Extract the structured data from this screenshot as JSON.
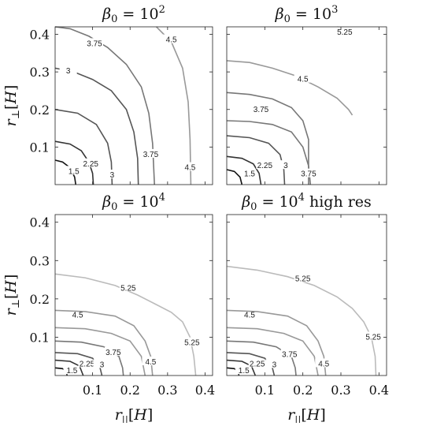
{
  "figure": {
    "xlabel": "r||[H]",
    "ylabel": "r⊥[H]"
  },
  "chart_data": [
    {
      "type": "contour",
      "title": "β0 = 10^2",
      "xlim": [
        0,
        0.42
      ],
      "ylim": [
        0,
        0.42
      ],
      "xticks": [],
      "yticks": [
        "0.1",
        "0.2",
        "0.3",
        "0.4"
      ],
      "xlabel": "",
      "ylabel": "r⊥[H]",
      "levels": [
        {
          "level": "1.5",
          "color": "#111111",
          "points": [
            [
              0.0,
              0.065
            ],
            [
              0.02,
              0.06
            ],
            [
              0.04,
              0.045
            ],
            [
              0.052,
              0.02
            ],
            [
              0.055,
              0.0
            ]
          ],
          "label_at": [
            0.05,
            0.035
          ]
        },
        {
          "level": "2.25",
          "color": "#333333",
          "points": [
            [
              0.0,
              0.115
            ],
            [
              0.04,
              0.108
            ],
            [
              0.07,
              0.09
            ],
            [
              0.09,
              0.06
            ],
            [
              0.1,
              0.03
            ],
            [
              0.102,
              0.0
            ]
          ],
          "label_at": [
            0.095,
            0.055
          ]
        },
        {
          "level": "3",
          "color": "#555555",
          "points": [
            [
              0.0,
              0.2
            ],
            [
              0.06,
              0.19
            ],
            [
              0.11,
              0.16
            ],
            [
              0.14,
              0.11
            ],
            [
              0.15,
              0.06
            ],
            [
              0.152,
              0.0
            ]
          ],
          "label_at": [
            0.152,
            0.025
          ]
        },
        {
          "level": "3",
          "color": "#555555",
          "points": [
            [
              0.0,
              0.31
            ],
            [
              0.05,
              0.3
            ],
            [
              0.1,
              0.28
            ],
            [
              0.15,
              0.25
            ],
            [
              0.19,
              0.2
            ],
            [
              0.21,
              0.14
            ],
            [
              0.22,
              0.07
            ],
            [
              0.222,
              0.0
            ]
          ],
          "label_at": [
            0.035,
            0.302
          ]
        },
        {
          "level": "3.75",
          "color": "#777777",
          "points": [
            [
              0.0,
              0.42
            ],
            [
              0.04,
              0.415
            ],
            [
              0.09,
              0.395
            ],
            [
              0.14,
              0.365
            ],
            [
              0.19,
              0.32
            ],
            [
              0.23,
              0.26
            ],
            [
              0.25,
              0.19
            ],
            [
              0.26,
              0.11
            ],
            [
              0.265,
              0.0
            ]
          ],
          "label_at": [
            0.105,
            0.375
          ]
        },
        {
          "level": "4.5",
          "color": "#999999",
          "points": [
            [
              0.27,
              0.42
            ],
            [
              0.31,
              0.38
            ],
            [
              0.34,
              0.31
            ],
            [
              0.355,
              0.22
            ],
            [
              0.36,
              0.12
            ],
            [
              0.362,
              0.0
            ]
          ],
          "label_at": [
            0.31,
            0.385
          ]
        }
      ],
      "labels_extra": [
        {
          "text": "3.75",
          "at": [
            0.255,
            0.08
          ]
        },
        {
          "text": "4.5",
          "at": [
            0.36,
            0.045
          ]
        }
      ]
    },
    {
      "type": "contour",
      "title": "β0 = 10^3",
      "xlim": [
        0,
        0.42
      ],
      "ylim": [
        0,
        0.42
      ],
      "xticks": [],
      "yticks": [],
      "xlabel": "",
      "ylabel": "",
      "levels": [
        {
          "level": "1.5",
          "color": "#111111",
          "points": [
            [
              0.0,
              0.04
            ],
            [
              0.02,
              0.035
            ],
            [
              0.035,
              0.02
            ],
            [
              0.04,
              0.0
            ]
          ],
          "label_at": [
            0.06,
            0.028
          ]
        },
        {
          "level": "2.25",
          "color": "#333333",
          "points": [
            [
              0.0,
              0.075
            ],
            [
              0.04,
              0.07
            ],
            [
              0.07,
              0.055
            ],
            [
              0.085,
              0.03
            ],
            [
              0.09,
              0.0
            ]
          ],
          "label_at": [
            0.1,
            0.05
          ]
        },
        {
          "level": "3",
          "color": "#555555",
          "points": [
            [
              0.0,
              0.13
            ],
            [
              0.06,
              0.125
            ],
            [
              0.11,
              0.11
            ],
            [
              0.14,
              0.08
            ],
            [
              0.15,
              0.04
            ],
            [
              0.152,
              0.0
            ]
          ],
          "label_at": [
            0.155,
            0.05
          ]
        },
        {
          "level": "3.75",
          "color": "#777777",
          "points": [
            [
              0.0,
              0.17
            ],
            [
              0.06,
              0.168
            ],
            [
              0.12,
              0.16
            ],
            [
              0.17,
              0.14
            ],
            [
              0.2,
              0.1
            ],
            [
              0.215,
              0.05
            ],
            [
              0.22,
              0.0
            ]
          ],
          "label_at": [
            0.09,
            0.2
          ]
        },
        {
          "level": "3.75",
          "color": "#777777",
          "points": [
            [
              0.0,
              0.245
            ],
            [
              0.06,
              0.24
            ],
            [
              0.12,
              0.228
            ],
            [
              0.17,
              0.205
            ],
            [
              0.2,
              0.17
            ],
            [
              0.215,
              0.12
            ],
            [
              0.215,
              0.0
            ]
          ],
          "label_at": [
            0.215,
            0.028
          ]
        },
        {
          "level": "4.5",
          "color": "#999999",
          "points": [
            [
              0.0,
              0.33
            ],
            [
              0.06,
              0.325
            ],
            [
              0.12,
              0.31
            ],
            [
              0.18,
              0.29
            ],
            [
              0.24,
              0.26
            ],
            [
              0.29,
              0.23
            ],
            [
              0.32,
              0.2
            ],
            [
              0.33,
              0.185
            ]
          ],
          "label_at": [
            0.2,
            0.28
          ]
        },
        {
          "level": "5.25",
          "color": "#bbbbbb",
          "points": [
            [
              0.29,
              0.42
            ],
            [
              0.33,
              0.41
            ]
          ],
          "label_at": [
            0.31,
            0.405
          ]
        }
      ],
      "labels_extra": []
    },
    {
      "type": "contour",
      "title": "β0 = 10^4",
      "xlim": [
        0,
        0.42
      ],
      "ylim": [
        0,
        0.42
      ],
      "xticks": [
        "0.1",
        "0.2",
        "0.3",
        "0.4"
      ],
      "yticks": [
        "0.1",
        "0.2",
        "0.3",
        "0.4"
      ],
      "xlabel": "r||[H]",
      "ylabel": "r⊥[H]",
      "levels": [
        {
          "level": "1.5",
          "color": "#111111",
          "points": [
            [
              0.0,
              0.02
            ],
            [
              0.02,
              0.018
            ],
            [
              0.03,
              0.01
            ],
            [
              0.032,
              0.0
            ]
          ],
          "label_at": [
            0.045,
            0.012
          ]
        },
        {
          "level": "2.25",
          "color": "#333333",
          "points": [
            [
              0.0,
              0.04
            ],
            [
              0.04,
              0.037
            ],
            [
              0.065,
              0.025
            ],
            [
              0.075,
              0.0
            ]
          ],
          "label_at": [
            0.085,
            0.03
          ]
        },
        {
          "level": "3",
          "color": "#555555",
          "points": [
            [
              0.0,
              0.06
            ],
            [
              0.06,
              0.057
            ],
            [
              0.1,
              0.045
            ],
            [
              0.12,
              0.02
            ],
            [
              0.125,
              0.0
            ]
          ],
          "label_at": [
            0.125,
            0.028
          ]
        },
        {
          "level": "3.75",
          "color": "#777777",
          "points": [
            [
              0.0,
              0.09
            ],
            [
              0.07,
              0.087
            ],
            [
              0.13,
              0.075
            ],
            [
              0.17,
              0.05
            ],
            [
              0.18,
              0.02
            ],
            [
              0.182,
              0.0
            ]
          ],
          "label_at": [
            0.155,
            0.06
          ]
        },
        {
          "level": "4.5",
          "color": "#999999",
          "points": [
            [
              0.0,
              0.125
            ],
            [
              0.08,
              0.122
            ],
            [
              0.15,
              0.11
            ],
            [
              0.2,
              0.09
            ],
            [
              0.23,
              0.05
            ],
            [
              0.24,
              0.0
            ]
          ],
          "label_at": [
            0.06,
            0.158
          ]
        },
        {
          "level": "4.5",
          "color": "#999999",
          "points": [
            [
              0.0,
              0.17
            ],
            [
              0.08,
              0.167
            ],
            [
              0.16,
              0.155
            ],
            [
              0.21,
              0.13
            ],
            [
              0.24,
              0.09
            ],
            [
              0.255,
              0.05
            ],
            [
              0.26,
              0.0
            ]
          ],
          "label_at": [
            0.255,
            0.035
          ]
        },
        {
          "level": "5.25",
          "color": "#bbbbbb",
          "points": [
            [
              0.0,
              0.265
            ],
            [
              0.08,
              0.255
            ],
            [
              0.16,
              0.235
            ],
            [
              0.22,
              0.21
            ],
            [
              0.27,
              0.185
            ],
            [
              0.31,
              0.165
            ],
            [
              0.34,
              0.14
            ],
            [
              0.36,
              0.1
            ],
            [
              0.37,
              0.05
            ],
            [
              0.375,
              0.0
            ]
          ],
          "label_at": [
            0.195,
            0.228
          ]
        }
      ],
      "labels_extra": [
        {
          "text": "5.25",
          "at": [
            0.365,
            0.085
          ]
        }
      ]
    },
    {
      "type": "contour",
      "title": "β0 = 10^4 high res",
      "xlim": [
        0,
        0.42
      ],
      "ylim": [
        0,
        0.42
      ],
      "xticks": [
        "0.1",
        "0.2",
        "0.3",
        "0.4"
      ],
      "yticks": [],
      "xlabel": "r||[H]",
      "ylabel": "",
      "levels": [
        {
          "level": "1.5",
          "color": "#111111",
          "points": [
            [
              0.0,
              0.02
            ],
            [
              0.02,
              0.018
            ],
            [
              0.03,
              0.01
            ],
            [
              0.032,
              0.0
            ]
          ],
          "label_at": [
            0.045,
            0.012
          ]
        },
        {
          "level": "2.25",
          "color": "#333333",
          "points": [
            [
              0.0,
              0.04
            ],
            [
              0.04,
              0.037
            ],
            [
              0.065,
              0.025
            ],
            [
              0.075,
              0.0
            ]
          ],
          "label_at": [
            0.08,
            0.03
          ]
        },
        {
          "level": "3",
          "color": "#555555",
          "points": [
            [
              0.0,
              0.06
            ],
            [
              0.06,
              0.057
            ],
            [
              0.1,
              0.045
            ],
            [
              0.12,
              0.02
            ],
            [
              0.125,
              0.0
            ]
          ],
          "label_at": [
            0.125,
            0.028
          ]
        },
        {
          "level": "3.75",
          "color": "#777777",
          "points": [
            [
              0.0,
              0.09
            ],
            [
              0.07,
              0.087
            ],
            [
              0.13,
              0.075
            ],
            [
              0.17,
              0.05
            ],
            [
              0.18,
              0.02
            ],
            [
              0.182,
              0.0
            ]
          ],
          "label_at": [
            0.165,
            0.055
          ]
        },
        {
          "level": "4.5",
          "color": "#999999",
          "points": [
            [
              0.0,
              0.125
            ],
            [
              0.08,
              0.122
            ],
            [
              0.15,
              0.11
            ],
            [
              0.2,
              0.09
            ],
            [
              0.23,
              0.05
            ],
            [
              0.24,
              0.0
            ]
          ],
          "label_at": [
            0.06,
            0.158
          ]
        },
        {
          "level": "4.5",
          "color": "#999999",
          "points": [
            [
              0.0,
              0.17
            ],
            [
              0.08,
              0.167
            ],
            [
              0.16,
              0.155
            ],
            [
              0.21,
              0.13
            ],
            [
              0.24,
              0.09
            ],
            [
              0.255,
              0.05
            ],
            [
              0.26,
              0.0
            ]
          ],
          "label_at": [
            0.255,
            0.03
          ]
        },
        {
          "level": "5.25",
          "color": "#bbbbbb",
          "points": [
            [
              0.0,
              0.285
            ],
            [
              0.08,
              0.275
            ],
            [
              0.16,
              0.258
            ],
            [
              0.23,
              0.235
            ],
            [
              0.29,
              0.205
            ],
            [
              0.33,
              0.175
            ],
            [
              0.36,
              0.14
            ],
            [
              0.38,
              0.1
            ],
            [
              0.39,
              0.05
            ],
            [
              0.392,
              0.0
            ]
          ],
          "label_at": [
            0.2,
            0.252
          ]
        }
      ],
      "labels_extra": [
        {
          "text": "5.25",
          "at": [
            0.385,
            0.1
          ]
        }
      ]
    }
  ]
}
